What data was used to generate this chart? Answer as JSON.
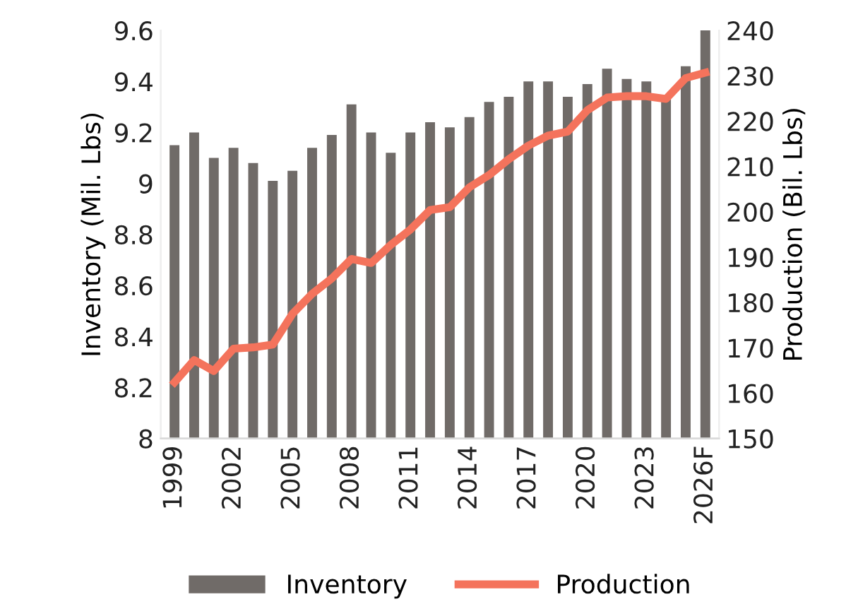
{
  "chart_data": {
    "type": "bar",
    "ylabel": "Inventory (Mil. Lbs)",
    "y2label": "Production (Bil. Lbs)",
    "categories": [
      "1999",
      null,
      null,
      "2002",
      null,
      null,
      "2005",
      null,
      null,
      "2008",
      null,
      null,
      "2011",
      null,
      null,
      "2014",
      null,
      null,
      "2017",
      null,
      null,
      "2020",
      null,
      null,
      "2023",
      null,
      null,
      "2026F"
    ],
    "series": [
      {
        "name": "Inventory",
        "color": "#706b68",
        "values": [
          9.15,
          9.2,
          9.1,
          9.14,
          9.08,
          9.01,
          9.05,
          9.14,
          9.19,
          9.31,
          9.2,
          9.12,
          9.2,
          9.24,
          9.22,
          9.26,
          9.32,
          9.34,
          9.4,
          9.4,
          9.34,
          9.39,
          9.45,
          9.41,
          9.4,
          9.34,
          9.46,
          9.6
        ]
      },
      {
        "name": "Production",
        "type": "line",
        "axis": "y2",
        "color": "#f4735c",
        "values": [
          162.4,
          167.3,
          164.9,
          169.8,
          170.1,
          170.7,
          177.5,
          181.9,
          185.3,
          189.6,
          188.7,
          192.7,
          196.1,
          200.4,
          201.0,
          205.4,
          208.1,
          211.6,
          214.6,
          216.8,
          217.7,
          222.4,
          225.2,
          225.5,
          225.5,
          224.9,
          229.5,
          230.7
        ]
      }
    ],
    "ylim": [
      8,
      9.6
    ],
    "yticks": [
      8,
      8.2,
      8.4,
      8.6,
      8.8,
      9,
      9.2,
      9.4,
      9.6
    ],
    "y2lim": [
      150,
      240
    ],
    "y2ticks": [
      150,
      160,
      170,
      180,
      190,
      200,
      210,
      220,
      230,
      240
    ],
    "legend": "bottom",
    "marker": "none",
    "line_style": "solid"
  }
}
